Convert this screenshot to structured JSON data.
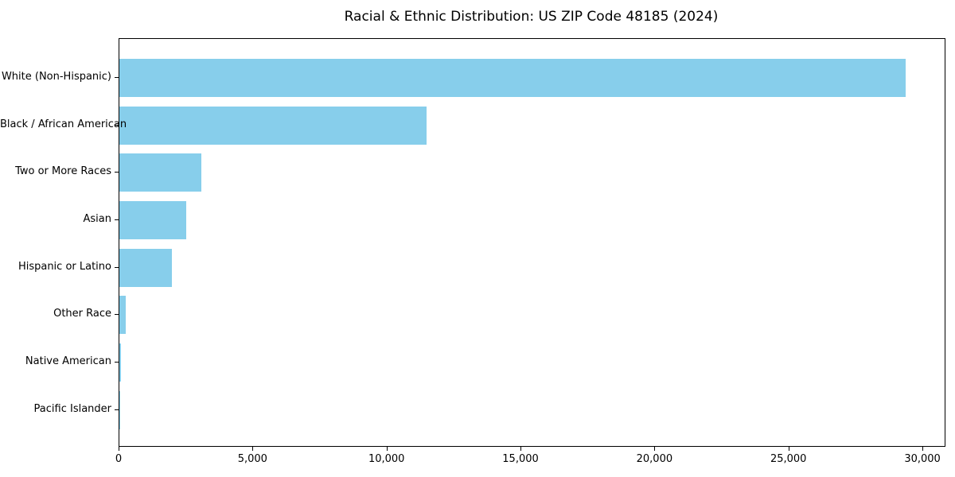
{
  "chart_data": {
    "type": "bar",
    "orientation": "horizontal",
    "title": "Racial & Ethnic Distribution: US ZIP Code 48185 (2024)",
    "categories": [
      "White (Non-Hispanic)",
      "Black / African American",
      "Two or More Races",
      "Asian",
      "Hispanic or Latino",
      "Other Race",
      "Native American",
      "Pacific Islander"
    ],
    "values": [
      29330,
      11450,
      3050,
      2500,
      1950,
      250,
      50,
      10
    ],
    "xlabel": "",
    "ylabel": "",
    "xlim": [
      0,
      30800
    ],
    "xticks": [
      0,
      5000,
      10000,
      15000,
      20000,
      25000,
      30000
    ],
    "xtick_labels": [
      "0",
      "5,000",
      "10,000",
      "15,000",
      "20,000",
      "25,000",
      "30,000"
    ],
    "bar_color": "#87CEEB",
    "frame_color": "#000000",
    "grid": false,
    "legend": null
  }
}
